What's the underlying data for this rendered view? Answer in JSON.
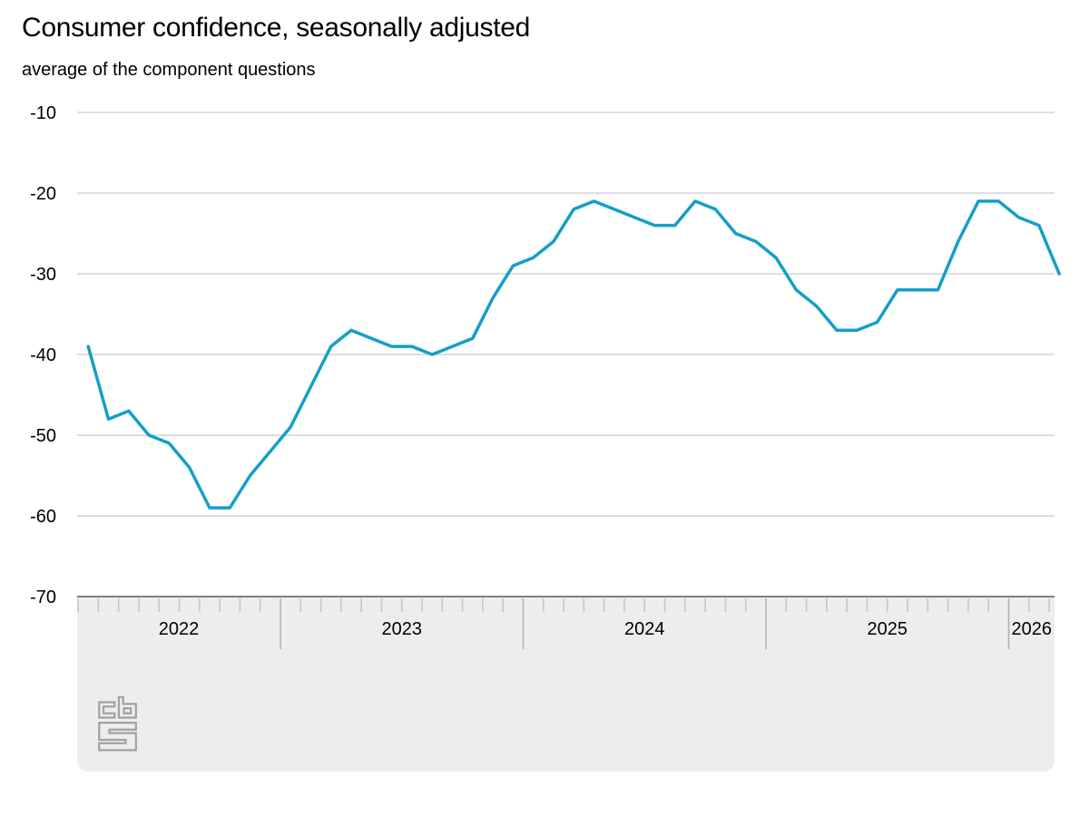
{
  "header": {
    "title": "Consumer confidence, seasonally adjusted",
    "subtitle": "average of the component questions"
  },
  "chart_data": {
    "type": "line",
    "title": "Consumer confidence, seasonally adjusted",
    "subtitle": "average of the component questions",
    "grid": "on",
    "legend": "none",
    "ylim": [
      -70,
      -10
    ],
    "y_ticks": [
      "-10",
      "-20",
      "-30",
      "-40",
      "-50",
      "-60",
      "-70"
    ],
    "x_year_labels": [
      "2022",
      "2023",
      "2024",
      "2025",
      "2026"
    ],
    "months": [
      "2022-03",
      "2022-04",
      "2022-05",
      "2022-06",
      "2022-07",
      "2022-08",
      "2022-09",
      "2022-10",
      "2022-11",
      "2022-12",
      "2023-01",
      "2023-02",
      "2023-03",
      "2023-04",
      "2023-05",
      "2023-06",
      "2023-07",
      "2023-08",
      "2023-09",
      "2023-10",
      "2023-11",
      "2023-12",
      "2024-01",
      "2024-02",
      "2024-03",
      "2024-04",
      "2024-05",
      "2024-06",
      "2024-07",
      "2024-08",
      "2024-09",
      "2024-10",
      "2024-11",
      "2024-12",
      "2025-01",
      "2025-02",
      "2025-03",
      "2025-04",
      "2025-05",
      "2025-06",
      "2025-07",
      "2025-08",
      "2025-09",
      "2025-10",
      "2025-11",
      "2025-12",
      "2026-01",
      "2026-02",
      "2026-03"
    ],
    "values": [
      -39,
      -48,
      -47,
      -50,
      -51,
      -54,
      -59,
      -59,
      -55,
      -52,
      -49,
      -44,
      -39,
      -37,
      -38,
      -39,
      -39,
      -40,
      -39,
      -38,
      -33,
      -29,
      -28,
      -26,
      -22,
      -21,
      -22,
      -23,
      -24,
      -24,
      -21,
      -22,
      -25,
      -26,
      -28,
      -32,
      -34,
      -37,
      -37,
      -36,
      -32,
      -32,
      -32,
      -26,
      -21,
      -21,
      -23,
      -24,
      -30
    ],
    "colors": {
      "line": "#149fc8",
      "gridline": "#c9c9c9",
      "axis_band_bg": "#ededed",
      "axis_band_border": "#7e7e7e",
      "month_tick": "#c7c7c7",
      "year_tick": "#b2b2b2",
      "text": "#000000",
      "logo": "#a2a2a2"
    }
  }
}
